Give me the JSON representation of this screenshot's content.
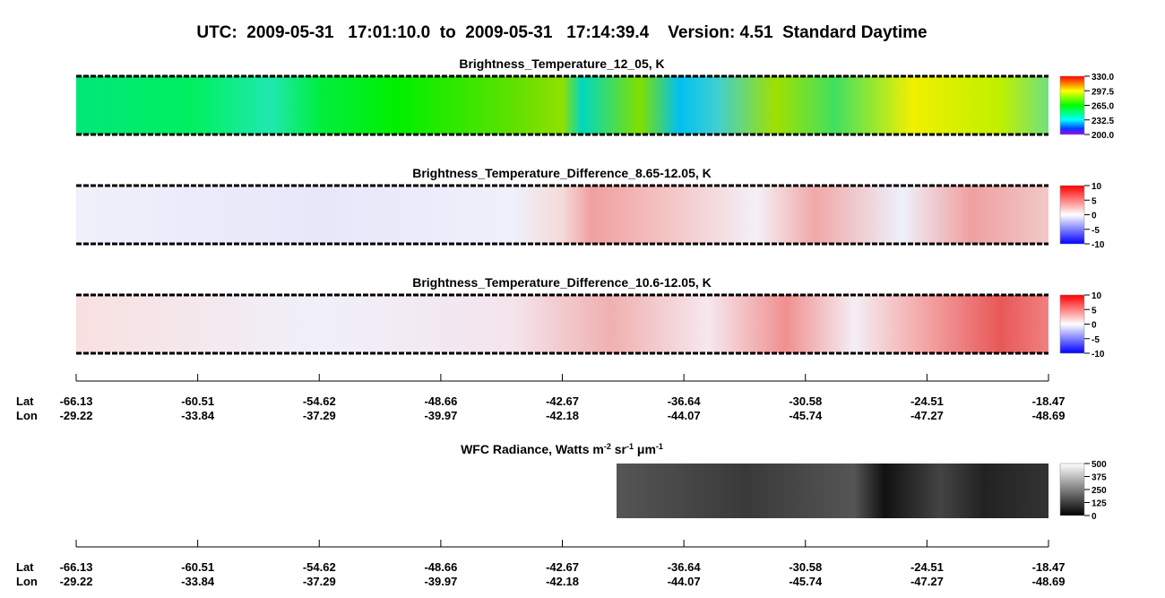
{
  "title": "UTC:  2009-05-31   17:01:10.0  to  2009-05-31   17:14:39.4    Version: 4.51  Standard Daytime",
  "panels": [
    {
      "title": "Brightness_Temperature_12_05, K",
      "colorbar_ticks": [
        "330.0",
        "297.5",
        "265.0",
        "232.5",
        "200.0"
      ]
    },
    {
      "title": "Brightness_Temperature_Difference_8.65-12.05, K",
      "colorbar_ticks": [
        "10",
        "5",
        "0",
        "-5",
        "-10"
      ]
    },
    {
      "title": "Brightness_Temperature_Difference_10.6-12.05, K",
      "colorbar_ticks": [
        "10",
        "5",
        "0",
        "-5",
        "-10"
      ]
    }
  ],
  "wfc": {
    "title": [
      "WFC Radiance, Watts m",
      "-2",
      " sr",
      "-1",
      " μm",
      "-1"
    ],
    "colorbar_ticks": [
      "500",
      "375",
      "250",
      "125",
      "0"
    ]
  },
  "axis": {
    "row_labels": [
      "Lat",
      "Lon"
    ],
    "lat": [
      "-66.13",
      "-60.51",
      "-54.62",
      "-48.66",
      "-42.67",
      "-36.64",
      "-30.58",
      "-24.51",
      "-18.47"
    ],
    "lon": [
      "-29.22",
      "-33.84",
      "-37.29",
      "-39.97",
      "-42.18",
      "-44.07",
      "-45.74",
      "-47.27",
      "-48.69"
    ]
  }
}
